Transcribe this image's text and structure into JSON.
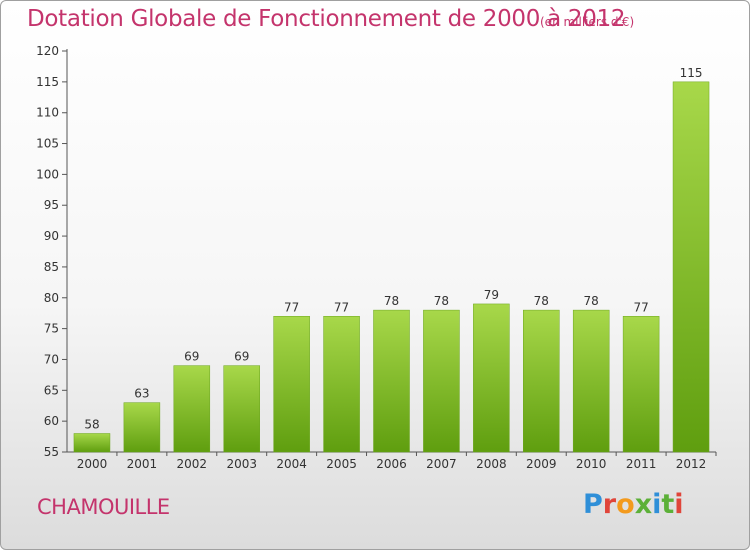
{
  "header": {
    "title": "Dotation Globale de Fonctionnement de 2000 à 2012",
    "unit": "(en milliers d'€)"
  },
  "footer": {
    "commune": "CHAMOUILLE",
    "logo": {
      "letters": [
        "P",
        "r",
        "o",
        "x",
        "i",
        "t",
        "i"
      ]
    }
  },
  "colors": {
    "title": "#c4346c",
    "bar_top": "#a8d84a",
    "bar_bottom": "#5f9e0f",
    "logo_blue": "#2f8fd8",
    "logo_orange": "#f39a1d",
    "logo_green": "#5cb038",
    "logo_red": "#e0453a"
  },
  "chart_data": {
    "type": "bar",
    "title": "Dotation Globale de Fonctionnement de 2000 à 2012",
    "subtitle": "(en milliers d'€)",
    "xlabel": "",
    "ylabel": "",
    "categories": [
      "2000",
      "2001",
      "2002",
      "2003",
      "2004",
      "2005",
      "2006",
      "2007",
      "2008",
      "2009",
      "2010",
      "2011",
      "2012"
    ],
    "values": [
      58,
      63,
      69,
      69,
      77,
      77,
      78,
      78,
      79,
      78,
      78,
      77,
      115
    ],
    "ylim": [
      55,
      120
    ],
    "yticks": [
      55,
      60,
      65,
      70,
      75,
      80,
      85,
      90,
      95,
      100,
      105,
      110,
      115,
      120
    ],
    "grid": false,
    "data_labels": true
  }
}
